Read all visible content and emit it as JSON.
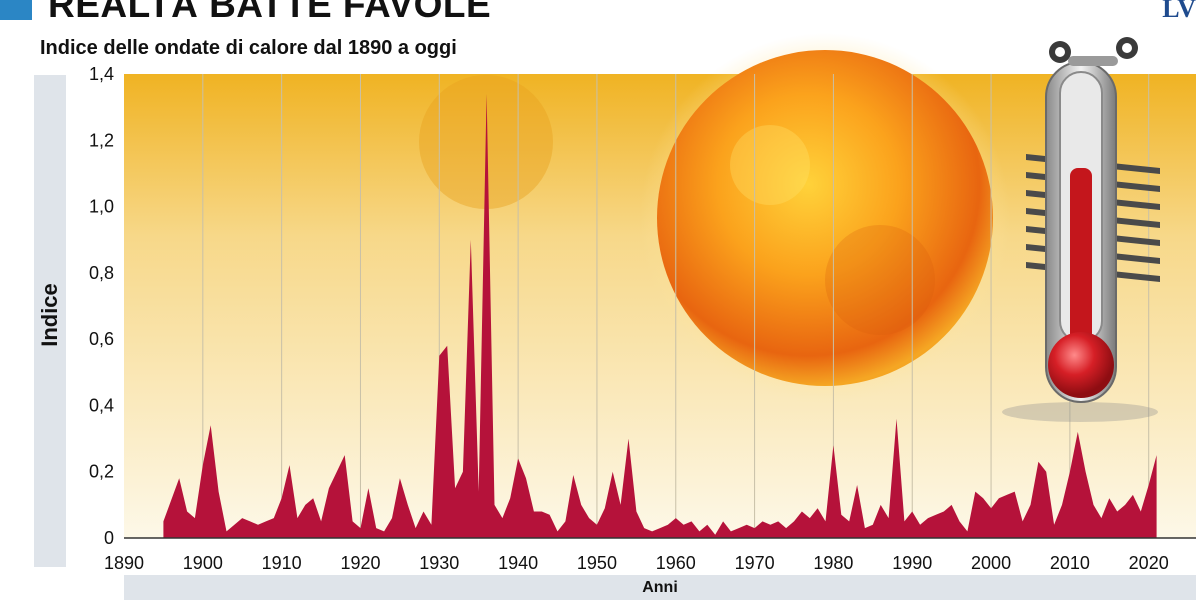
{
  "header": {
    "title": "REALTÀ BATTE FAVOLE",
    "logo": "LV"
  },
  "chart_data": {
    "type": "area",
    "subtitle": "Indice delle ondate di calore dal 1890 a oggi",
    "xlabel": "Anni",
    "ylabel": "Indice",
    "xlim": [
      1890,
      2026
    ],
    "ylim": [
      0,
      1.4
    ],
    "x_ticks": [
      1890,
      1900,
      1910,
      1920,
      1930,
      1940,
      1950,
      1960,
      1970,
      1980,
      1990,
      2000,
      2010,
      2020
    ],
    "x_tick_labels": [
      "1890",
      "1900",
      "1910",
      "1920",
      "1930",
      "1940",
      "1950",
      "1960",
      "1970",
      "1980",
      "1990",
      "2000",
      "2010",
      "2020"
    ],
    "y_ticks": [
      0,
      0.2,
      0.4,
      0.6,
      0.8,
      1.0,
      1.2,
      1.4
    ],
    "y_tick_labels": [
      "0",
      "0,2",
      "0,4",
      "0,6",
      "0,8",
      "1,0",
      "1,2",
      "1,4"
    ],
    "grid": "vertical",
    "colors": {
      "fill": "#b5123a",
      "background_top": "#f0b323",
      "background_bottom": "#fdf8e8",
      "grid": "#c8c0a8"
    },
    "series": [
      {
        "x": [
          1895,
          1897,
          1898,
          1899,
          1900,
          1901,
          1902,
          1903,
          1904,
          1905,
          1906,
          1907,
          1908,
          1909,
          1910,
          1911,
          1912,
          1913,
          1914,
          1915,
          1916,
          1917,
          1918,
          1919,
          1920,
          1921,
          1922,
          1923,
          1924,
          1925,
          1926,
          1927,
          1928,
          1929,
          1930,
          1931,
          1932,
          1933,
          1934,
          1935,
          1936,
          1937,
          1938,
          1939,
          1940,
          1941,
          1942,
          1943,
          1944,
          1945,
          1946,
          1947,
          1948,
          1949,
          1950,
          1951,
          1952,
          1953,
          1954,
          1955,
          1956,
          1957,
          1958,
          1959,
          1960,
          1961,
          1962,
          1963,
          1964,
          1965,
          1966,
          1967,
          1968,
          1969,
          1970,
          1971,
          1972,
          1973,
          1974,
          1975,
          1976,
          1977,
          1978,
          1979,
          1980,
          1981,
          1982,
          1983,
          1984,
          1985,
          1986,
          1987,
          1988,
          1989,
          1990,
          1991,
          1992,
          1993,
          1994,
          1995,
          1996,
          1997,
          1998,
          1999,
          2000,
          2001,
          2002,
          2003,
          2004,
          2005,
          2006,
          2007,
          2008,
          2009,
          2010,
          2011,
          2012,
          2013,
          2014,
          2015,
          2016,
          2017,
          2018,
          2019,
          2020,
          2021
        ],
        "y": [
          0.05,
          0.18,
          0.08,
          0.06,
          0.22,
          0.34,
          0.14,
          0.02,
          0.04,
          0.06,
          0.05,
          0.04,
          0.05,
          0.06,
          0.12,
          0.22,
          0.06,
          0.1,
          0.12,
          0.05,
          0.15,
          0.2,
          0.25,
          0.05,
          0.03,
          0.15,
          0.03,
          0.02,
          0.06,
          0.18,
          0.1,
          0.03,
          0.08,
          0.04,
          0.55,
          0.58,
          0.15,
          0.2,
          0.9,
          0.14,
          1.34,
          0.1,
          0.06,
          0.12,
          0.24,
          0.18,
          0.08,
          0.08,
          0.07,
          0.02,
          0.05,
          0.19,
          0.1,
          0.06,
          0.04,
          0.09,
          0.2,
          0.1,
          0.3,
          0.08,
          0.03,
          0.02,
          0.03,
          0.04,
          0.06,
          0.04,
          0.05,
          0.02,
          0.04,
          0.01,
          0.05,
          0.02,
          0.03,
          0.04,
          0.03,
          0.05,
          0.04,
          0.05,
          0.03,
          0.05,
          0.08,
          0.06,
          0.09,
          0.05,
          0.28,
          0.07,
          0.05,
          0.16,
          0.03,
          0.04,
          0.1,
          0.06,
          0.36,
          0.05,
          0.08,
          0.04,
          0.06,
          0.07,
          0.08,
          0.1,
          0.05,
          0.02,
          0.14,
          0.12,
          0.09,
          0.12,
          0.13,
          0.14,
          0.05,
          0.1,
          0.23,
          0.2,
          0.04,
          0.1,
          0.2,
          0.32,
          0.2,
          0.1,
          0.06,
          0.12,
          0.08,
          0.1,
          0.13,
          0.08,
          0.16,
          0.25
        ]
      }
    ]
  }
}
